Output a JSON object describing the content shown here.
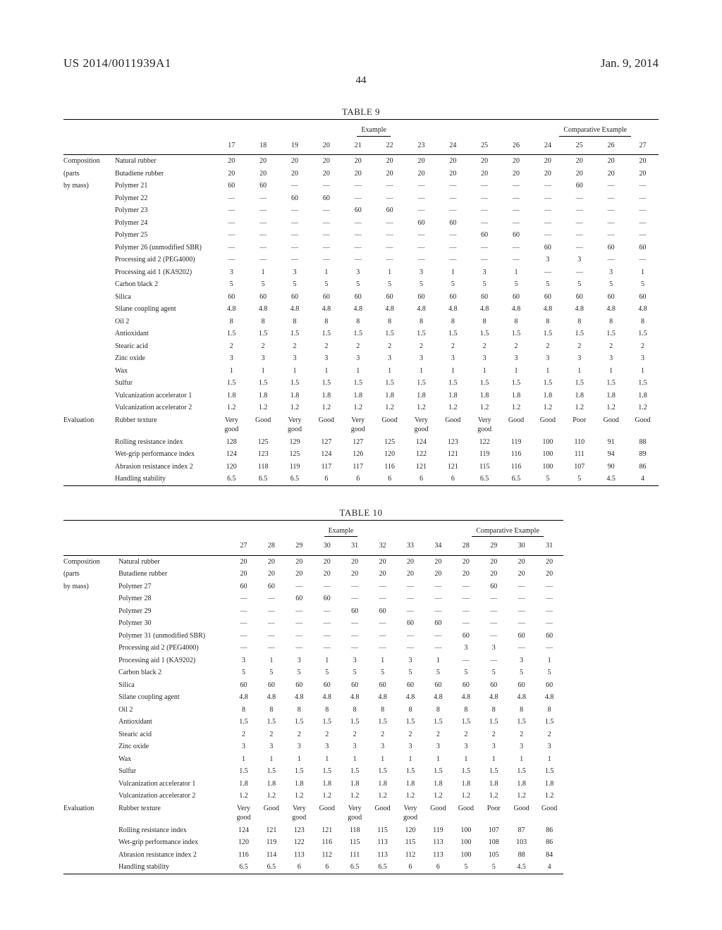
{
  "header": {
    "left": "US 2014/0011939A1",
    "right": "Jan. 9, 2014",
    "page": "44"
  },
  "dash": "—",
  "table9": {
    "title": "TABLE 9",
    "groups": [
      {
        "label": "Example",
        "cols": [
          "17",
          "18",
          "19",
          "20",
          "21",
          "22",
          "23",
          "24",
          "25",
          "26"
        ]
      },
      {
        "label": "Comparative Example",
        "cols": [
          "24",
          "25",
          "26",
          "27"
        ]
      }
    ],
    "sections": [
      {
        "category": [
          "Composition",
          "(parts",
          "by mass)"
        ],
        "rows": [
          {
            "label": "Natural rubber",
            "v": [
              "20",
              "20",
              "20",
              "20",
              "20",
              "20",
              "20",
              "20",
              "20",
              "20",
              "20",
              "20",
              "20",
              "20"
            ]
          },
          {
            "label": "Butadiene rubber",
            "v": [
              "20",
              "20",
              "20",
              "20",
              "20",
              "20",
              "20",
              "20",
              "20",
              "20",
              "20",
              "20",
              "20",
              "20"
            ]
          },
          {
            "label": "Polymer 21",
            "v": [
              "60",
              "60",
              "—",
              "—",
              "—",
              "—",
              "—",
              "—",
              "—",
              "—",
              "—",
              "60",
              "—",
              "—"
            ]
          },
          {
            "label": "Polymer 22",
            "v": [
              "—",
              "—",
              "60",
              "60",
              "—",
              "—",
              "—",
              "—",
              "—",
              "—",
              "—",
              "—",
              "—",
              "—"
            ]
          },
          {
            "label": "Polymer 23",
            "v": [
              "—",
              "—",
              "—",
              "—",
              "60",
              "60",
              "—",
              "—",
              "—",
              "—",
              "—",
              "—",
              "—",
              "—"
            ]
          },
          {
            "label": "Polymer 24",
            "v": [
              "—",
              "—",
              "—",
              "—",
              "—",
              "—",
              "60",
              "60",
              "—",
              "—",
              "—",
              "—",
              "—",
              "—"
            ]
          },
          {
            "label": "Polymer 25",
            "v": [
              "—",
              "—",
              "—",
              "—",
              "—",
              "—",
              "—",
              "—",
              "60",
              "60",
              "—",
              "—",
              "—",
              "—"
            ]
          },
          {
            "label": "Polymer 26 (unmodified SBR)",
            "v": [
              "—",
              "—",
              "—",
              "—",
              "—",
              "—",
              "—",
              "—",
              "—",
              "—",
              "60",
              "—",
              "60",
              "60"
            ]
          },
          {
            "label": "Processing aid 2 (PEG4000)",
            "v": [
              "—",
              "—",
              "—",
              "—",
              "—",
              "—",
              "—",
              "—",
              "—",
              "—",
              "3",
              "3",
              "—",
              "—"
            ]
          },
          {
            "label": "Processing aid 1 (KA9202)",
            "v": [
              "3",
              "1",
              "3",
              "1",
              "3",
              "1",
              "3",
              "1",
              "3",
              "1",
              "—",
              "—",
              "3",
              "1"
            ]
          },
          {
            "label": "Carbon black 2",
            "v": [
              "5",
              "5",
              "5",
              "5",
              "5",
              "5",
              "5",
              "5",
              "5",
              "5",
              "5",
              "5",
              "5",
              "5"
            ]
          },
          {
            "label": "Silica",
            "v": [
              "60",
              "60",
              "60",
              "60",
              "60",
              "60",
              "60",
              "60",
              "60",
              "60",
              "60",
              "60",
              "60",
              "60"
            ]
          },
          {
            "label": "Silane coupling agent",
            "v": [
              "4.8",
              "4.8",
              "4.8",
              "4.8",
              "4.8",
              "4.8",
              "4.8",
              "4.8",
              "4.8",
              "4.8",
              "4.8",
              "4.8",
              "4.8",
              "4.8"
            ]
          },
          {
            "label": "Oil 2",
            "v": [
              "8",
              "8",
              "8",
              "8",
              "8",
              "8",
              "8",
              "8",
              "8",
              "8",
              "8",
              "8",
              "8",
              "8"
            ]
          },
          {
            "label": "Antioxidant",
            "v": [
              "1.5",
              "1.5",
              "1.5",
              "1.5",
              "1.5",
              "1.5",
              "1.5",
              "1.5",
              "1.5",
              "1.5",
              "1.5",
              "1.5",
              "1.5",
              "1.5"
            ]
          },
          {
            "label": "Stearic acid",
            "v": [
              "2",
              "2",
              "2",
              "2",
              "2",
              "2",
              "2",
              "2",
              "2",
              "2",
              "2",
              "2",
              "2",
              "2"
            ]
          },
          {
            "label": "Zinc oxide",
            "v": [
              "3",
              "3",
              "3",
              "3",
              "3",
              "3",
              "3",
              "3",
              "3",
              "3",
              "3",
              "3",
              "3",
              "3"
            ]
          },
          {
            "label": "Wax",
            "v": [
              "1",
              "1",
              "1",
              "1",
              "1",
              "1",
              "1",
              "1",
              "1",
              "1",
              "1",
              "1",
              "1",
              "1"
            ]
          },
          {
            "label": "Sulfur",
            "v": [
              "1.5",
              "1.5",
              "1.5",
              "1.5",
              "1.5",
              "1.5",
              "1.5",
              "1.5",
              "1.5",
              "1.5",
              "1.5",
              "1.5",
              "1.5",
              "1.5"
            ]
          },
          {
            "label": "Vulcanization accelerator 1",
            "v": [
              "1.8",
              "1.8",
              "1.8",
              "1.8",
              "1.8",
              "1.8",
              "1.8",
              "1.8",
              "1.8",
              "1.8",
              "1.8",
              "1.8",
              "1.8",
              "1.8"
            ]
          },
          {
            "label": "Vulcanization accelerator 2",
            "v": [
              "1.2",
              "1.2",
              "1.2",
              "1.2",
              "1.2",
              "1.2",
              "1.2",
              "1.2",
              "1.2",
              "1.2",
              "1.2",
              "1.2",
              "1.2",
              "1.2"
            ]
          }
        ]
      },
      {
        "category": [
          "Evaluation"
        ],
        "rows": [
          {
            "label": "Rubber texture",
            "v": [
              "Very good",
              "Good",
              "Very good",
              "Good",
              "Very good",
              "Good",
              "Very good",
              "Good",
              "Very good",
              "Good",
              "Good",
              "Poor",
              "Good",
              "Good"
            ]
          },
          {
            "label": "Rolling resistance index",
            "v": [
              "128",
              "125",
              "129",
              "127",
              "127",
              "125",
              "124",
              "123",
              "122",
              "119",
              "100",
              "110",
              "91",
              "88"
            ]
          },
          {
            "label": "Wet-grip performance index",
            "v": [
              "124",
              "123",
              "125",
              "124",
              "126",
              "120",
              "122",
              "121",
              "119",
              "116",
              "100",
              "111",
              "94",
              "89"
            ]
          },
          {
            "label": "Abrasion resistance index 2",
            "v": [
              "120",
              "118",
              "119",
              "117",
              "117",
              "116",
              "121",
              "121",
              "115",
              "116",
              "100",
              "107",
              "90",
              "86"
            ]
          },
          {
            "label": "Handling stability",
            "v": [
              "6.5",
              "6.5",
              "6.5",
              "6",
              "6",
              "6",
              "6",
              "6",
              "6.5",
              "6.5",
              "5",
              "5",
              "4.5",
              "4"
            ]
          }
        ]
      }
    ]
  },
  "table10": {
    "title": "TABLE 10",
    "groups": [
      {
        "label": "Example",
        "cols": [
          "27",
          "28",
          "29",
          "30",
          "31",
          "32",
          "33",
          "34"
        ]
      },
      {
        "label": "Comparative Example",
        "cols": [
          "28",
          "29",
          "30",
          "31"
        ]
      }
    ],
    "sections": [
      {
        "category": [
          "Composition",
          "(parts",
          "by mass)"
        ],
        "rows": [
          {
            "label": "Natural rubber",
            "v": [
              "20",
              "20",
              "20",
              "20",
              "20",
              "20",
              "20",
              "20",
              "20",
              "20",
              "20",
              "20"
            ]
          },
          {
            "label": "Butadiene rubber",
            "v": [
              "20",
              "20",
              "20",
              "20",
              "20",
              "20",
              "20",
              "20",
              "20",
              "20",
              "20",
              "20"
            ]
          },
          {
            "label": "Polymer 27",
            "v": [
              "60",
              "60",
              "—",
              "—",
              "—",
              "—",
              "—",
              "—",
              "—",
              "60",
              "—",
              "—"
            ]
          },
          {
            "label": "Polymer 28",
            "v": [
              "—",
              "—",
              "60",
              "60",
              "—",
              "—",
              "—",
              "—",
              "—",
              "—",
              "—",
              "—"
            ]
          },
          {
            "label": "Polymer 29",
            "v": [
              "—",
              "—",
              "—",
              "—",
              "60",
              "60",
              "—",
              "—",
              "—",
              "—",
              "—",
              "—"
            ]
          },
          {
            "label": "Polymer 30",
            "v": [
              "—",
              "—",
              "—",
              "—",
              "—",
              "—",
              "60",
              "60",
              "—",
              "—",
              "—",
              "—"
            ]
          },
          {
            "label": "Polymer 31 (unmodified SBR)",
            "v": [
              "—",
              "—",
              "—",
              "—",
              "—",
              "—",
              "—",
              "—",
              "60",
              "—",
              "60",
              "60"
            ]
          },
          {
            "label": "Processing aid 2 (PEG4000)",
            "v": [
              "—",
              "—",
              "—",
              "—",
              "—",
              "—",
              "—",
              "—",
              "3",
              "3",
              "—",
              "—"
            ]
          },
          {
            "label": "Processing aid 1 (KA9202)",
            "v": [
              "3",
              "1",
              "3",
              "1",
              "3",
              "1",
              "3",
              "1",
              "—",
              "—",
              "3",
              "1"
            ]
          },
          {
            "label": "Carbon black 2",
            "v": [
              "5",
              "5",
              "5",
              "5",
              "5",
              "5",
              "5",
              "5",
              "5",
              "5",
              "5",
              "5"
            ]
          },
          {
            "label": "Silica",
            "v": [
              "60",
              "60",
              "60",
              "60",
              "60",
              "60",
              "60",
              "60",
              "60",
              "60",
              "60",
              "60"
            ]
          },
          {
            "label": "Silane coupling agent",
            "v": [
              "4.8",
              "4.8",
              "4.8",
              "4.8",
              "4.8",
              "4.8",
              "4.8",
              "4.8",
              "4.8",
              "4.8",
              "4.8",
              "4.8"
            ]
          },
          {
            "label": "Oil 2",
            "v": [
              "8",
              "8",
              "8",
              "8",
              "8",
              "8",
              "8",
              "8",
              "8",
              "8",
              "8",
              "8"
            ]
          },
          {
            "label": "Antioxidant",
            "v": [
              "1.5",
              "1.5",
              "1.5",
              "1.5",
              "1.5",
              "1.5",
              "1.5",
              "1.5",
              "1.5",
              "1.5",
              "1.5",
              "1.5"
            ]
          },
          {
            "label": "Stearic acid",
            "v": [
              "2",
              "2",
              "2",
              "2",
              "2",
              "2",
              "2",
              "2",
              "2",
              "2",
              "2",
              "2"
            ]
          },
          {
            "label": "Zinc oxide",
            "v": [
              "3",
              "3",
              "3",
              "3",
              "3",
              "3",
              "3",
              "3",
              "3",
              "3",
              "3",
              "3"
            ]
          },
          {
            "label": "Wax",
            "v": [
              "1",
              "1",
              "1",
              "1",
              "1",
              "1",
              "1",
              "1",
              "1",
              "1",
              "1",
              "1"
            ]
          },
          {
            "label": "Sulfur",
            "v": [
              "1.5",
              "1.5",
              "1.5",
              "1.5",
              "1.5",
              "1.5",
              "1.5",
              "1.5",
              "1.5",
              "1.5",
              "1.5",
              "1.5"
            ]
          },
          {
            "label": "Vulcanization accelerator 1",
            "v": [
              "1.8",
              "1.8",
              "1.8",
              "1.8",
              "1.8",
              "1.8",
              "1.8",
              "1.8",
              "1.8",
              "1.8",
              "1.8",
              "1.8"
            ]
          },
          {
            "label": "Vulcanization accelerator 2",
            "v": [
              "1.2",
              "1.2",
              "1.2",
              "1.2",
              "1.2",
              "1.2",
              "1.2",
              "1.2",
              "1.2",
              "1.2",
              "1.2",
              "1.2"
            ]
          }
        ]
      },
      {
        "category": [
          "Evaluation"
        ],
        "rows": [
          {
            "label": "Rubber texture",
            "v": [
              "Very good",
              "Good",
              "Very good",
              "Good",
              "Very good",
              "Good",
              "Very good",
              "Good",
              "Good",
              "Poor",
              "Good",
              "Good"
            ]
          },
          {
            "label": "Rolling resistance index",
            "v": [
              "124",
              "121",
              "123",
              "121",
              "118",
              "115",
              "120",
              "119",
              "100",
              "107",
              "87",
              "86"
            ]
          },
          {
            "label": "Wet-grip performance index",
            "v": [
              "120",
              "119",
              "122",
              "116",
              "115",
              "113",
              "115",
              "113",
              "100",
              "108",
              "103",
              "86"
            ]
          },
          {
            "label": "Abrasion resistance index 2",
            "v": [
              "116",
              "114",
              "113",
              "112",
              "111",
              "113",
              "112",
              "113",
              "100",
              "105",
              "88",
              "84"
            ]
          },
          {
            "label": "Handling stability",
            "v": [
              "6.5",
              "6.5",
              "6",
              "6",
              "6.5",
              "6.5",
              "6",
              "6",
              "5",
              "5",
              "4.5",
              "4"
            ]
          }
        ]
      }
    ]
  }
}
